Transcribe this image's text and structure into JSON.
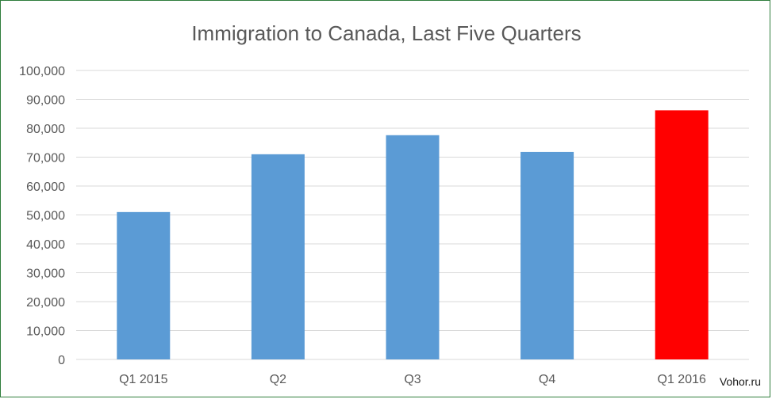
{
  "chart_data": {
    "type": "bar",
    "title": "Immigration to Canada, Last Five Quarters",
    "categories": [
      "Q1 2015",
      "Q2",
      "Q3",
      "Q4",
      "Q1 2016"
    ],
    "values": [
      51000,
      71000,
      77600,
      71800,
      86200
    ],
    "bar_colors": [
      "#5b9bd5",
      "#5b9bd5",
      "#5b9bd5",
      "#5b9bd5",
      "#ff0000"
    ],
    "ylim": [
      0,
      100000
    ],
    "yticks": [
      0,
      10000,
      20000,
      30000,
      40000,
      50000,
      60000,
      70000,
      80000,
      90000,
      100000
    ],
    "ytick_labels": [
      "0",
      "10,000",
      "20,000",
      "30,000",
      "40,000",
      "50,000",
      "60,000",
      "70,000",
      "80,000",
      "90,000",
      "100,000"
    ],
    "grid": true,
    "legend": "none",
    "xlabel": "",
    "ylabel": ""
  },
  "colors": {
    "gridline": "#d9d9d9",
    "axis_text": "#595959",
    "title_text": "#595959",
    "frame_border": "#2f7d3c"
  },
  "watermark": "Vohor.ru"
}
